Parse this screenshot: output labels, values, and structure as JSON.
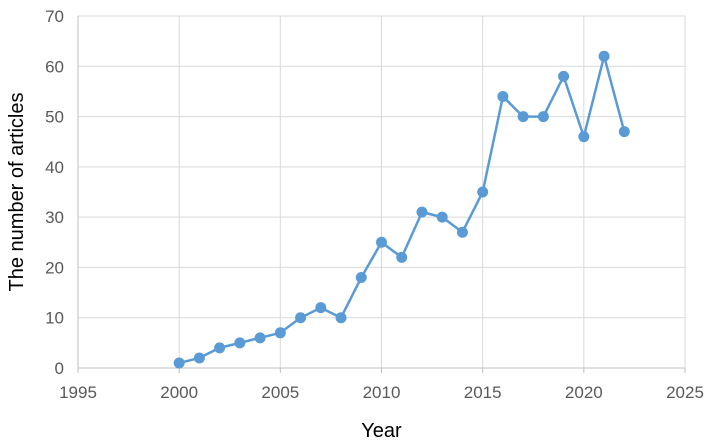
{
  "chart_data": {
    "type": "line",
    "xlabel": "Year",
    "ylabel": "The number of articles",
    "xlim": [
      1995,
      2025
    ],
    "ylim": [
      0,
      70
    ],
    "xticks": [
      1995,
      2000,
      2005,
      2010,
      2015,
      2020,
      2025
    ],
    "yticks": [
      0,
      10,
      20,
      30,
      40,
      50,
      60,
      70
    ],
    "grid": true,
    "series": [
      {
        "color": "#5b9bd5",
        "x": [
          2000,
          2001,
          2002,
          2003,
          2004,
          2005,
          2006,
          2007,
          2008,
          2009,
          2010,
          2011,
          2012,
          2013,
          2014,
          2015,
          2016,
          2017,
          2018,
          2019,
          2020,
          2021,
          2022
        ],
        "y": [
          1,
          2,
          4,
          5,
          6,
          7,
          10,
          12,
          10,
          18,
          25,
          22,
          31,
          30,
          27,
          35,
          54,
          50,
          50,
          58,
          46,
          62,
          47
        ]
      }
    ]
  }
}
